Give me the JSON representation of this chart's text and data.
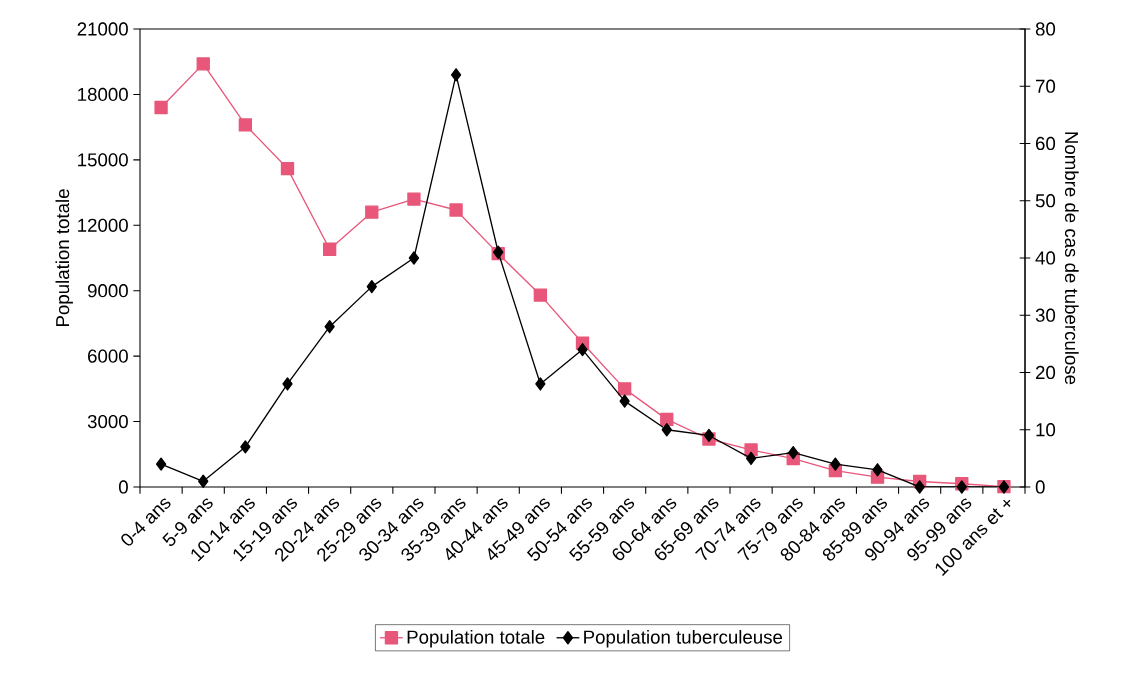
{
  "chart_data": {
    "type": "line",
    "categories": [
      "0-4 ans",
      "5-9 ans",
      "10-14 ans",
      "15-19 ans",
      "20-24 ans",
      "25-29 ans",
      "30-34 ans",
      "35-39 ans",
      "40-44 ans",
      "45-49 ans",
      "50-54 ans",
      "55-59 ans",
      "60-64 ans",
      "65-69 ans",
      "70-74 ans",
      "75-79 ans",
      "80-84 ans",
      "85-89 ans",
      "90-94 ans",
      "95-99 ans",
      "100 ans et +"
    ],
    "series": [
      {
        "name": "Population totale",
        "color": "#e8577a",
        "marker": "square",
        "values": [
          17400,
          19400,
          16600,
          14600,
          10900,
          12600,
          13200,
          12700,
          10700,
          8800,
          6600,
          4500,
          3100,
          2200,
          1700,
          1300,
          750,
          450,
          250,
          150,
          20
        ]
      },
      {
        "name": "Population tuberculeuse",
        "color": "#000000",
        "marker": "diamond",
        "axis": "y2",
        "values": [
          4,
          1,
          7,
          18,
          28,
          35,
          40,
          72,
          41,
          18,
          24,
          15,
          10,
          9,
          5,
          6,
          4,
          3,
          0,
          0,
          0
        ]
      }
    ],
    "ylabel": "Population totale",
    "y2label": "Nombre de cas de tuberculose",
    "ylim": [
      0,
      21000
    ],
    "yticks": [
      0,
      3000,
      6000,
      9000,
      12000,
      15000,
      18000,
      21000
    ],
    "y2lim": [
      0,
      80
    ],
    "y2ticks": [
      0,
      10,
      20,
      30,
      40,
      50,
      60,
      70,
      80
    ],
    "legend": "bottom",
    "grid": false,
    "line_style": "solid"
  }
}
